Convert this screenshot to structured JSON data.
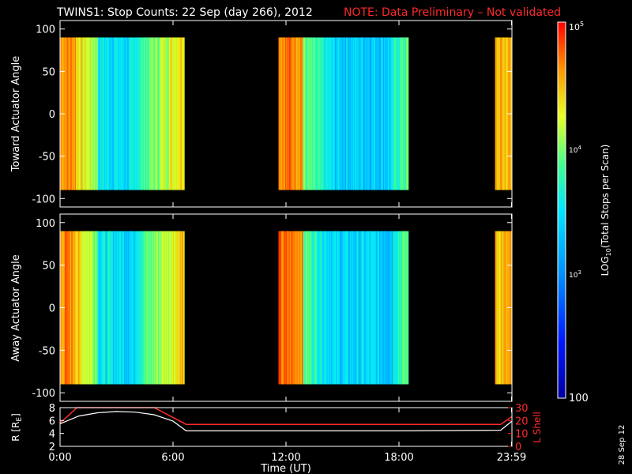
{
  "header": {
    "title": "TWINS1: Stop Counts: 22 Sep (day 266), 2012",
    "note": "NOTE: Data Preliminary – Not validated"
  },
  "stamp": "28 Sep 12",
  "chart_data": [
    {
      "type": "heatmap",
      "ylabel": "Toward Actuator Angle",
      "yticks": [
        "100",
        "50",
        "0",
        "-50",
        "-100"
      ],
      "ylim": [
        -110,
        110
      ],
      "data_ylim": [
        -90,
        90
      ],
      "xlim_hours": [
        0,
        24
      ],
      "coverage_hours": [
        [
          0.0,
          6.6
        ],
        [
          11.6,
          18.5
        ],
        [
          23.1,
          24.0
        ]
      ]
    },
    {
      "type": "heatmap",
      "ylabel": "Away Actuator Angle",
      "yticks": [
        "100",
        "50",
        "0",
        "-50",
        "-100"
      ],
      "ylim": [
        -110,
        110
      ],
      "data_ylim": [
        -90,
        90
      ],
      "xlim_hours": [
        0,
        24
      ],
      "coverage_hours": [
        [
          0.0,
          6.6
        ],
        [
          11.6,
          18.5
        ],
        [
          23.1,
          24.0
        ]
      ]
    },
    {
      "type": "line",
      "left_label": "R [R",
      "left_label_sub": "E",
      "left_label_end": "]",
      "right_label": "L Shell",
      "left_ticks": [
        "8",
        "6",
        "4",
        "2"
      ],
      "right_ticks": [
        "30",
        "20",
        "10",
        "0"
      ],
      "left_ylim": [
        2,
        8
      ],
      "right_ylim": [
        0,
        30
      ],
      "series": [
        {
          "hours": [
            0,
            1.0,
            2.0,
            3.0,
            4.0,
            5.0,
            6.0,
            6.7,
            12,
            18,
            23.4,
            24
          ],
          "values": [
            5.5,
            6.7,
            7.2,
            7.4,
            7.3,
            6.9,
            5.9,
            4.4,
            4.4,
            4.4,
            4.5,
            5.9
          ]
        },
        {
          "hours": [
            0,
            0.9,
            5.0,
            6.7,
            12,
            18,
            23.4,
            24
          ],
          "values": [
            18,
            30,
            30,
            17,
            17,
            17,
            17,
            23
          ]
        }
      ]
    }
  ],
  "xaxis": {
    "ticks": [
      "0:00",
      "6:00",
      "12:00",
      "18:00",
      "23:59"
    ],
    "tick_hours": [
      0,
      6,
      12,
      18,
      23.98
    ],
    "label": "Time (UT)"
  },
  "colorbar": {
    "label_pre": "LOG",
    "label_sub": "10",
    "label_post": "(Total Stops per Scan)",
    "tick_100": "100",
    "tick_1e3_base": "10",
    "tick_1e3_exp": "3",
    "tick_1e4_base": "10",
    "tick_1e4_exp": "4",
    "tick_1e5_base": "10",
    "tick_1e5_exp": "5"
  },
  "colors": {
    "note": "#ff2a2a",
    "lshell": "#ff2a2a",
    "radius": "#ffffff"
  }
}
